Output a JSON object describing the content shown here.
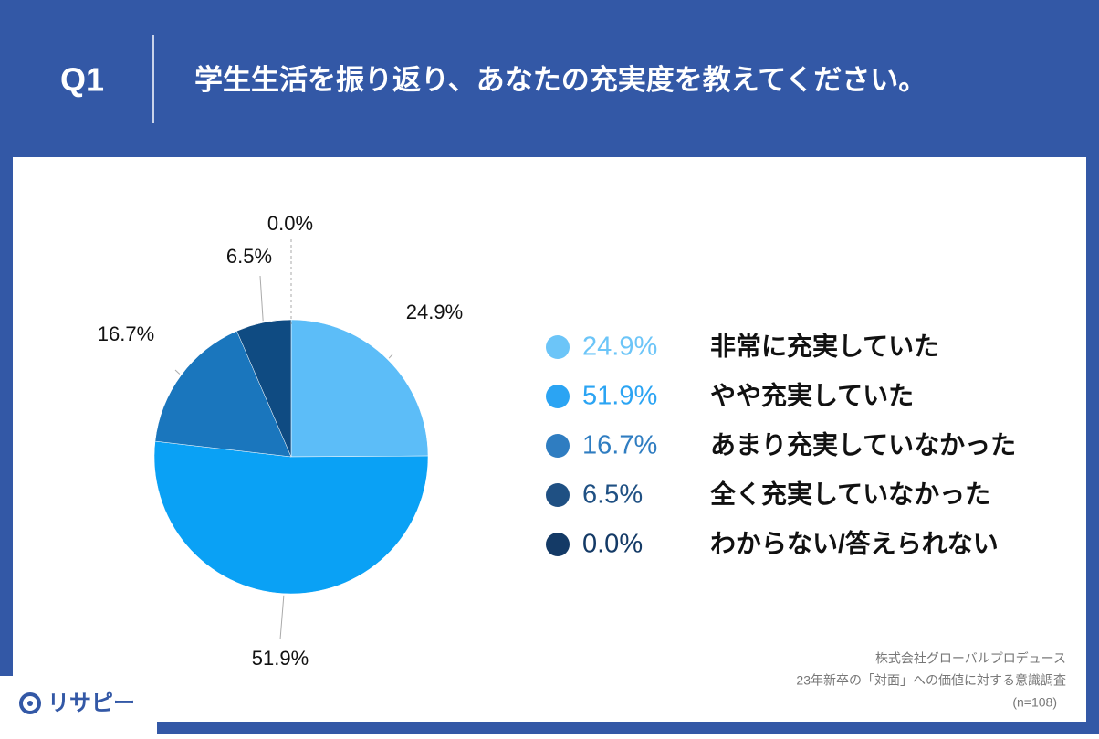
{
  "header": {
    "question": "Q1",
    "title": "学生生活を振り返り、あなたの充実度を教えてください。"
  },
  "chart_data": {
    "type": "pie",
    "categories": [
      "非常に充実していた",
      "やや充実していた",
      "あまり充実していなかった",
      "全く充実していなかった",
      "わからない/答えられない"
    ],
    "values": [
      24.9,
      51.9,
      16.7,
      6.5,
      0.0
    ],
    "value_labels": [
      "24.9%",
      "51.9%",
      "16.7%",
      "6.5%",
      "0.0%"
    ],
    "colors": [
      "#5cbdf8",
      "#0aa1f5",
      "#1a76bd",
      "#0f4b82",
      "#123a6b"
    ],
    "legend_colors": [
      "#6cc5f8",
      "#2ba4f3",
      "#2f7dc1",
      "#1f5083",
      "#143a66"
    ]
  },
  "source": [
    "株式会社グローバルプロデュース",
    "23年新卒の「対面」への価値に対する意識調査",
    "(n=108)"
  ],
  "logo": "リサピー"
}
